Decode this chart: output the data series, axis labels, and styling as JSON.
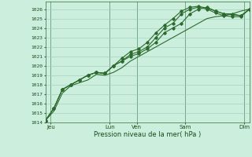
{
  "bg_color": "#cceedd",
  "grid_color": "#99ccbb",
  "line_color": "#2d6a2d",
  "marker_color": "#2d6a2d",
  "ylim": [
    1014,
    1026.8
  ],
  "yticks": [
    1014,
    1015,
    1016,
    1017,
    1018,
    1019,
    1020,
    1021,
    1022,
    1023,
    1024,
    1025,
    1026
  ],
  "xlabel": "Pression niveau de la mer( hPa )",
  "day_labels": [
    "Jeu",
    "Lun",
    "Ven",
    "Sam",
    "Dim"
  ],
  "day_positions": [
    0.5,
    6.0,
    8.5,
    13.0,
    18.5
  ],
  "vline_positions": [
    0.5,
    6.0,
    8.5,
    13.0,
    18.5
  ],
  "series": [
    [
      1014.2,
      1015.2,
      1017.1,
      1017.9,
      1018.2,
      1018.5,
      1019.1,
      1019.0,
      1019.3,
      1019.8,
      1020.5,
      1021.0,
      1021.5,
      1022.0,
      1022.5,
      1023.0,
      1023.5,
      1024.0,
      1024.5,
      1025.0,
      1025.2,
      1025.3,
      1025.5,
      1025.8,
      1026.0
    ],
    [
      1014.2,
      1015.5,
      1017.5,
      1018.0,
      1018.5,
      1019.0,
      1019.3,
      1019.2,
      1020.0,
      1020.5,
      1021.0,
      1021.3,
      1021.8,
      1022.5,
      1023.5,
      1024.0,
      1024.5,
      1025.5,
      1026.0,
      1026.2,
      1025.8,
      1025.5,
      1025.5,
      1025.3,
      1026.0
    ],
    [
      1014.2,
      1015.5,
      1017.5,
      1018.0,
      1018.5,
      1019.0,
      1019.3,
      1019.2,
      1020.0,
      1020.8,
      1021.5,
      1021.8,
      1022.5,
      1023.5,
      1024.3,
      1025.0,
      1025.8,
      1026.2,
      1026.3,
      1026.1,
      1025.8,
      1025.5,
      1025.4,
      1025.3,
      1026.0
    ],
    [
      1014.2,
      1015.5,
      1017.5,
      1018.0,
      1018.5,
      1019.0,
      1019.3,
      1019.2,
      1020.0,
      1020.5,
      1021.2,
      1021.5,
      1022.0,
      1023.0,
      1024.0,
      1024.5,
      1025.5,
      1026.0,
      1026.2,
      1026.0,
      1025.6,
      1025.3,
      1025.2,
      1025.2,
      1026.0
    ]
  ],
  "n_points": 25,
  "figsize": [
    3.2,
    2.0
  ],
  "dpi": 100
}
